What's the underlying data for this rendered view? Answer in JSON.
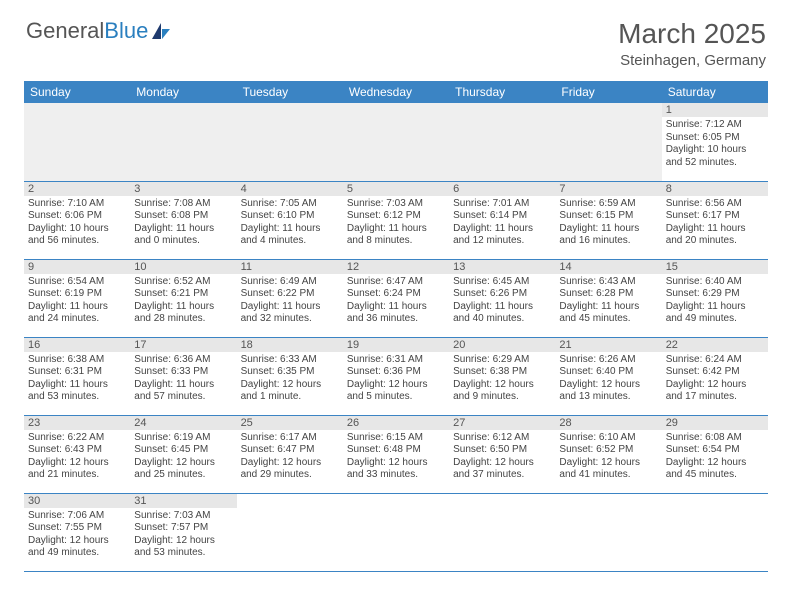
{
  "logo": {
    "word1": "General",
    "word2": "Blue"
  },
  "title": {
    "month": "March 2025",
    "location": "Steinhagen, Germany"
  },
  "colors": {
    "header_bg": "#3b84c4",
    "header_text": "#ffffff",
    "daynum_bg": "#e7e7e7",
    "border": "#3b84c4",
    "text": "#444444",
    "logo_blue": "#2a7fbf"
  },
  "weekdays": [
    "Sunday",
    "Monday",
    "Tuesday",
    "Wednesday",
    "Thursday",
    "Friday",
    "Saturday"
  ],
  "weeks": [
    [
      null,
      null,
      null,
      null,
      null,
      null,
      {
        "n": "1",
        "sr": "Sunrise: 7:12 AM",
        "ss": "Sunset: 6:05 PM",
        "dl": "Daylight: 10 hours and 52 minutes."
      }
    ],
    [
      {
        "n": "2",
        "sr": "Sunrise: 7:10 AM",
        "ss": "Sunset: 6:06 PM",
        "dl": "Daylight: 10 hours and 56 minutes."
      },
      {
        "n": "3",
        "sr": "Sunrise: 7:08 AM",
        "ss": "Sunset: 6:08 PM",
        "dl": "Daylight: 11 hours and 0 minutes."
      },
      {
        "n": "4",
        "sr": "Sunrise: 7:05 AM",
        "ss": "Sunset: 6:10 PM",
        "dl": "Daylight: 11 hours and 4 minutes."
      },
      {
        "n": "5",
        "sr": "Sunrise: 7:03 AM",
        "ss": "Sunset: 6:12 PM",
        "dl": "Daylight: 11 hours and 8 minutes."
      },
      {
        "n": "6",
        "sr": "Sunrise: 7:01 AM",
        "ss": "Sunset: 6:14 PM",
        "dl": "Daylight: 11 hours and 12 minutes."
      },
      {
        "n": "7",
        "sr": "Sunrise: 6:59 AM",
        "ss": "Sunset: 6:15 PM",
        "dl": "Daylight: 11 hours and 16 minutes."
      },
      {
        "n": "8",
        "sr": "Sunrise: 6:56 AM",
        "ss": "Sunset: 6:17 PM",
        "dl": "Daylight: 11 hours and 20 minutes."
      }
    ],
    [
      {
        "n": "9",
        "sr": "Sunrise: 6:54 AM",
        "ss": "Sunset: 6:19 PM",
        "dl": "Daylight: 11 hours and 24 minutes."
      },
      {
        "n": "10",
        "sr": "Sunrise: 6:52 AM",
        "ss": "Sunset: 6:21 PM",
        "dl": "Daylight: 11 hours and 28 minutes."
      },
      {
        "n": "11",
        "sr": "Sunrise: 6:49 AM",
        "ss": "Sunset: 6:22 PM",
        "dl": "Daylight: 11 hours and 32 minutes."
      },
      {
        "n": "12",
        "sr": "Sunrise: 6:47 AM",
        "ss": "Sunset: 6:24 PM",
        "dl": "Daylight: 11 hours and 36 minutes."
      },
      {
        "n": "13",
        "sr": "Sunrise: 6:45 AM",
        "ss": "Sunset: 6:26 PM",
        "dl": "Daylight: 11 hours and 40 minutes."
      },
      {
        "n": "14",
        "sr": "Sunrise: 6:43 AM",
        "ss": "Sunset: 6:28 PM",
        "dl": "Daylight: 11 hours and 45 minutes."
      },
      {
        "n": "15",
        "sr": "Sunrise: 6:40 AM",
        "ss": "Sunset: 6:29 PM",
        "dl": "Daylight: 11 hours and 49 minutes."
      }
    ],
    [
      {
        "n": "16",
        "sr": "Sunrise: 6:38 AM",
        "ss": "Sunset: 6:31 PM",
        "dl": "Daylight: 11 hours and 53 minutes."
      },
      {
        "n": "17",
        "sr": "Sunrise: 6:36 AM",
        "ss": "Sunset: 6:33 PM",
        "dl": "Daylight: 11 hours and 57 minutes."
      },
      {
        "n": "18",
        "sr": "Sunrise: 6:33 AM",
        "ss": "Sunset: 6:35 PM",
        "dl": "Daylight: 12 hours and 1 minute."
      },
      {
        "n": "19",
        "sr": "Sunrise: 6:31 AM",
        "ss": "Sunset: 6:36 PM",
        "dl": "Daylight: 12 hours and 5 minutes."
      },
      {
        "n": "20",
        "sr": "Sunrise: 6:29 AM",
        "ss": "Sunset: 6:38 PM",
        "dl": "Daylight: 12 hours and 9 minutes."
      },
      {
        "n": "21",
        "sr": "Sunrise: 6:26 AM",
        "ss": "Sunset: 6:40 PM",
        "dl": "Daylight: 12 hours and 13 minutes."
      },
      {
        "n": "22",
        "sr": "Sunrise: 6:24 AM",
        "ss": "Sunset: 6:42 PM",
        "dl": "Daylight: 12 hours and 17 minutes."
      }
    ],
    [
      {
        "n": "23",
        "sr": "Sunrise: 6:22 AM",
        "ss": "Sunset: 6:43 PM",
        "dl": "Daylight: 12 hours and 21 minutes."
      },
      {
        "n": "24",
        "sr": "Sunrise: 6:19 AM",
        "ss": "Sunset: 6:45 PM",
        "dl": "Daylight: 12 hours and 25 minutes."
      },
      {
        "n": "25",
        "sr": "Sunrise: 6:17 AM",
        "ss": "Sunset: 6:47 PM",
        "dl": "Daylight: 12 hours and 29 minutes."
      },
      {
        "n": "26",
        "sr": "Sunrise: 6:15 AM",
        "ss": "Sunset: 6:48 PM",
        "dl": "Daylight: 12 hours and 33 minutes."
      },
      {
        "n": "27",
        "sr": "Sunrise: 6:12 AM",
        "ss": "Sunset: 6:50 PM",
        "dl": "Daylight: 12 hours and 37 minutes."
      },
      {
        "n": "28",
        "sr": "Sunrise: 6:10 AM",
        "ss": "Sunset: 6:52 PM",
        "dl": "Daylight: 12 hours and 41 minutes."
      },
      {
        "n": "29",
        "sr": "Sunrise: 6:08 AM",
        "ss": "Sunset: 6:54 PM",
        "dl": "Daylight: 12 hours and 45 minutes."
      }
    ],
    [
      {
        "n": "30",
        "sr": "Sunrise: 7:06 AM",
        "ss": "Sunset: 7:55 PM",
        "dl": "Daylight: 12 hours and 49 minutes."
      },
      {
        "n": "31",
        "sr": "Sunrise: 7:03 AM",
        "ss": "Sunset: 7:57 PM",
        "dl": "Daylight: 12 hours and 53 minutes."
      },
      null,
      null,
      null,
      null,
      null
    ]
  ]
}
